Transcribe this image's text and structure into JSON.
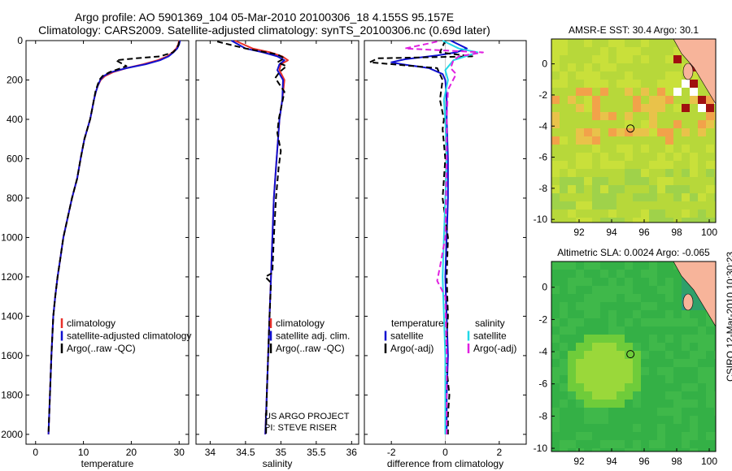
{
  "figure": {
    "title_line1": "Argo profile: AO 5901369_104 05-Mar-2010 20100306_18 4.155S 95.157E",
    "title_line2": "Climatology: CARS2009. Satellite-adjusted climatology: synTS_20100306.nc (0.69d later)",
    "stamp": "CSIRO 12-Mar-2010 10:30:23",
    "colors": {
      "red": "#e8302a",
      "blue": "#1010d0",
      "black": "#000000",
      "cyan": "#22d8e8",
      "magenta": "#e020e0"
    }
  },
  "chart_data": [
    {
      "type": "line",
      "id": "temperature",
      "xlabel": "temperature",
      "xlim": [
        -2,
        32
      ],
      "ylim": [
        0,
        2050
      ],
      "y_reversed": true,
      "xticks": [
        0,
        10,
        20,
        30
      ],
      "yticks": [
        0,
        200,
        400,
        600,
        800,
        1000,
        1200,
        1400,
        1600,
        1800,
        2000
      ],
      "legend": {
        "placement": "lower-right",
        "entries": [
          "climatology",
          "satellite-adjusted climatology",
          "Argo(..raw -QC)"
        ]
      },
      "series": [
        {
          "name": "climatology",
          "color": "red",
          "dash": false,
          "x": [
            30.0,
            29.8,
            29.4,
            28.6,
            27.5,
            25.5,
            22.5,
            19.0,
            16.2,
            14.5,
            13.6,
            13.0,
            12.6,
            12.2,
            11.8,
            11.4,
            10.8,
            10.2,
            9.4,
            8.7,
            7.6,
            6.7,
            5.8,
            5.2,
            4.6,
            4.1,
            3.7,
            3.3,
            3.0,
            2.7
          ],
          "y": [
            0,
            20,
            40,
            60,
            80,
            100,
            120,
            140,
            160,
            180,
            200,
            230,
            260,
            300,
            350,
            400,
            450,
            500,
            600,
            700,
            800,
            900,
            1000,
            1100,
            1200,
            1300,
            1400,
            1600,
            1800,
            2000
          ]
        },
        {
          "name": "satellite-adjusted climatology",
          "color": "blue",
          "dash": false,
          "x": [
            30.2,
            30.0,
            29.6,
            28.8,
            27.8,
            26.0,
            23.0,
            19.0,
            15.8,
            14.2,
            13.5,
            13.0,
            12.6,
            12.2,
            11.8,
            11.4,
            10.8,
            10.2,
            9.4,
            8.7,
            7.6,
            6.7,
            5.8,
            5.2,
            4.6,
            4.1,
            3.7,
            3.3,
            3.0,
            2.7
          ],
          "y": [
            0,
            20,
            40,
            60,
            80,
            100,
            120,
            140,
            160,
            180,
            200,
            230,
            260,
            300,
            350,
            400,
            450,
            500,
            600,
            700,
            800,
            900,
            1000,
            1100,
            1200,
            1300,
            1400,
            1600,
            1800,
            2000
          ]
        },
        {
          "name": "Argo(..raw -QC)",
          "color": "black",
          "dash": true,
          "x": [
            30.0,
            29.9,
            29.5,
            28.7,
            26.0,
            21.0,
            16.8,
            19.0,
            15.5,
            14.0,
            13.3,
            12.9,
            12.5,
            12.2,
            11.8,
            11.4,
            10.8,
            10.2,
            9.4,
            8.7,
            7.6,
            6.7,
            5.8,
            5.2,
            4.6,
            4.1,
            3.7,
            3.3,
            3.0,
            2.7
          ],
          "y": [
            5,
            20,
            40,
            60,
            80,
            90,
            100,
            130,
            160,
            180,
            200,
            230,
            260,
            300,
            350,
            400,
            450,
            500,
            600,
            700,
            800,
            900,
            1000,
            1100,
            1200,
            1300,
            1400,
            1600,
            1800,
            2000
          ]
        }
      ]
    },
    {
      "type": "line",
      "id": "salinity",
      "xlabel": "salinity",
      "xlim": [
        33.8,
        36.1
      ],
      "ylim": [
        0,
        2050
      ],
      "y_reversed": true,
      "xticks": [
        34,
        34.5,
        35,
        35.5,
        36
      ],
      "legend": {
        "placement": "lower-right",
        "entries": [
          "climatology",
          "satellite adj. clim.",
          "Argo(..raw -QC)"
        ]
      },
      "annotation": [
        "US ARGO PROJECT",
        "PI: STEVE RISER"
      ],
      "series": [
        {
          "name": "climatology",
          "color": "red",
          "dash": false,
          "x": [
            34.35,
            34.6,
            34.85,
            35.02,
            35.1,
            35.0,
            34.98,
            35.05,
            35.02,
            34.98,
            34.96,
            34.94,
            34.92,
            34.9,
            34.88,
            34.86,
            34.84,
            34.82,
            34.8,
            34.79,
            34.78
          ],
          "y": [
            0,
            40,
            60,
            80,
            100,
            120,
            150,
            200,
            300,
            400,
            500,
            600,
            700,
            800,
            1000,
            1200,
            1400,
            1600,
            1800,
            1900,
            2000
          ]
        },
        {
          "name": "satellite adj. clim.",
          "color": "blue",
          "dash": false,
          "x": [
            34.3,
            34.5,
            34.75,
            34.95,
            35.05,
            34.98,
            34.95,
            35.03,
            35.02,
            34.98,
            34.96,
            34.94,
            34.92,
            34.9,
            34.88,
            34.86,
            34.84,
            34.82,
            34.8,
            34.79,
            34.78
          ],
          "y": [
            0,
            40,
            60,
            80,
            100,
            120,
            150,
            200,
            300,
            400,
            500,
            600,
            700,
            800,
            1000,
            1200,
            1400,
            1600,
            1800,
            1900,
            2000
          ]
        },
        {
          "name": "Argo(..raw -QC)",
          "color": "black",
          "dash": true,
          "x": [
            34.1,
            34.5,
            34.95,
            35.05,
            34.95,
            35.08,
            34.98,
            34.92,
            35.05,
            34.97,
            34.95,
            35.0,
            34.97,
            34.93,
            34.9,
            34.88,
            34.78,
            34.86,
            34.84,
            34.82,
            34.8,
            34.79
          ],
          "y": [
            5,
            40,
            70,
            90,
            110,
            130,
            160,
            190,
            260,
            400,
            470,
            560,
            640,
            800,
            1000,
            1180,
            1200,
            1230,
            1400,
            1600,
            1800,
            2000
          ]
        }
      ]
    },
    {
      "type": "line",
      "id": "difference",
      "xlabel": "difference from climatology",
      "xlim": [
        -3.0,
        3.0
      ],
      "ylim": [
        0,
        2050
      ],
      "y_reversed": true,
      "xticks": [
        -2,
        0,
        2
      ],
      "legend": {
        "placement": "lower-right",
        "headers": [
          "temperature",
          "salinity"
        ],
        "entries": [
          "satellite",
          "Argo(-adj)",
          "satellite",
          "Argo(-adj)"
        ]
      },
      "series": [
        {
          "name": "temperature satellite",
          "color": "blue",
          "dash": false,
          "x": [
            0.2,
            0.8,
            0.4,
            -0.3,
            -1.5,
            -2.0,
            -1.6,
            -0.6,
            -0.1,
            0.0,
            0.05,
            0.05,
            0.1,
            0.1,
            0.05,
            0.0,
            0.05,
            0.1,
            0.05,
            0.05
          ],
          "y": [
            0,
            40,
            60,
            75,
            95,
            110,
            120,
            140,
            170,
            200,
            300,
            400,
            600,
            800,
            1000,
            1200,
            1400,
            1600,
            1800,
            2000
          ]
        },
        {
          "name": "temperature Argo(-adj)",
          "color": "black",
          "dash": true,
          "x": [
            0.0,
            -0.2,
            1.0,
            -2.5,
            -2.8,
            -0.3,
            -0.1,
            -0.2,
            -0.05,
            -0.1,
            0.0,
            -0.1,
            0.1,
            0.05,
            0.1,
            0.0,
            0.15,
            0.1,
            0.1
          ],
          "y": [
            0,
            60,
            80,
            90,
            110,
            140,
            200,
            300,
            400,
            450,
            600,
            800,
            1000,
            1200,
            1400,
            1600,
            1800,
            1900,
            2000
          ]
        },
        {
          "name": "salinity satellite",
          "color": "cyan",
          "dash": false,
          "x": [
            -0.1,
            0.5,
            1.2,
            0.3,
            0.0,
            0.1,
            -0.05,
            0.0,
            0.05,
            0.0,
            -0.05,
            -0.1,
            0.0,
            0.0
          ],
          "y": [
            0,
            40,
            60,
            100,
            150,
            200,
            300,
            400,
            600,
            800,
            1000,
            1200,
            1600,
            2000
          ]
        },
        {
          "name": "salinity Argo(-adj)",
          "color": "magenta",
          "dash": true,
          "x": [
            -0.3,
            -0.8,
            -1.5,
            1.4,
            0.5,
            0.3,
            0.2,
            0.4,
            0.1,
            0.05,
            0.05,
            0.0,
            -0.2,
            -0.3,
            0.0,
            0.05,
            0.05
          ],
          "y": [
            5,
            20,
            40,
            60,
            80,
            100,
            140,
            170,
            250,
            400,
            600,
            1000,
            1150,
            1220,
            1300,
            1600,
            2000
          ]
        }
      ]
    },
    {
      "type": "heatmap",
      "id": "sst-map",
      "title": "AMSR-E SST: 30.4  Argo: 30.1",
      "xlim": [
        90.3,
        100.4
      ],
      "ylim": [
        -10.2,
        1.6
      ],
      "xticks": [
        92,
        94,
        96,
        98,
        100
      ],
      "yticks": [
        0,
        -2,
        -4,
        -6,
        -8,
        -10
      ],
      "marker": {
        "lon": 95.157,
        "lat": -4.155
      }
    },
    {
      "type": "heatmap",
      "id": "sla-map",
      "title": "Altimetric SLA: 0.0024  Argo: -0.065",
      "xlim": [
        90.3,
        100.4
      ],
      "ylim": [
        -10.2,
        1.6
      ],
      "xticks": [
        92,
        94,
        96,
        98,
        100
      ],
      "yticks": [
        0,
        -2,
        -4,
        -6,
        -8,
        -10
      ],
      "marker": {
        "lon": 95.157,
        "lat": -4.155
      }
    }
  ]
}
